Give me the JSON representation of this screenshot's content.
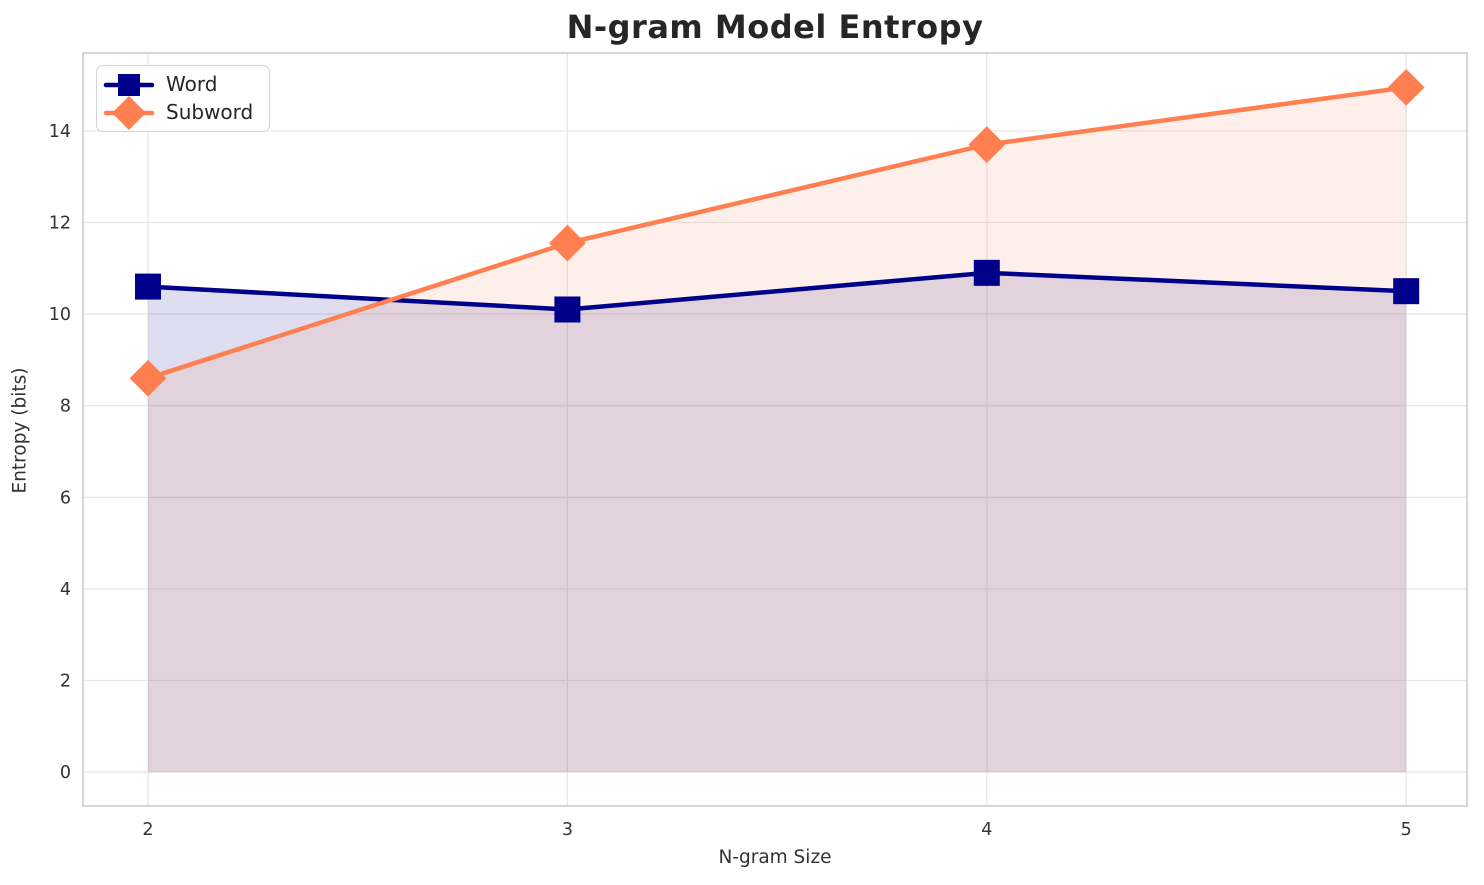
{
  "chart_data": {
    "type": "line",
    "title": "N-gram Model Entropy",
    "xlabel": "N-gram Size",
    "ylabel": "Entropy (bits)",
    "x": [
      2,
      3,
      4,
      5
    ],
    "series": [
      {
        "name": "Word",
        "values": [
          10.6,
          10.1,
          10.9,
          10.5
        ],
        "color": "#00008B",
        "marker": "square",
        "fill_opacity": 0.13
      },
      {
        "name": "Subword",
        "values": [
          8.6,
          11.55,
          13.7,
          14.95
        ],
        "color": "#FF7F50",
        "marker": "diamond",
        "fill_opacity": 0.12
      }
    ],
    "xtick_labels": [
      "2",
      "3",
      "4",
      "5"
    ],
    "xtick_values": [
      2,
      3,
      4,
      5
    ],
    "ytick_labels": [
      "0",
      "2",
      "4",
      "6",
      "8",
      "10",
      "12",
      "14"
    ],
    "ytick_values": [
      0,
      2,
      4,
      6,
      8,
      10,
      12,
      14
    ],
    "xlim": [
      1.845,
      5.145
    ],
    "ylim": [
      -0.74,
      15.7
    ],
    "fill_baseline": 0,
    "grid": true,
    "legend_position": "upper-left",
    "colors": {
      "grid": "#e7e7e7",
      "spine": "#cccccc",
      "tick_label": "#333333",
      "title": "#262626",
      "legend_border": "#d4d4d4"
    }
  }
}
